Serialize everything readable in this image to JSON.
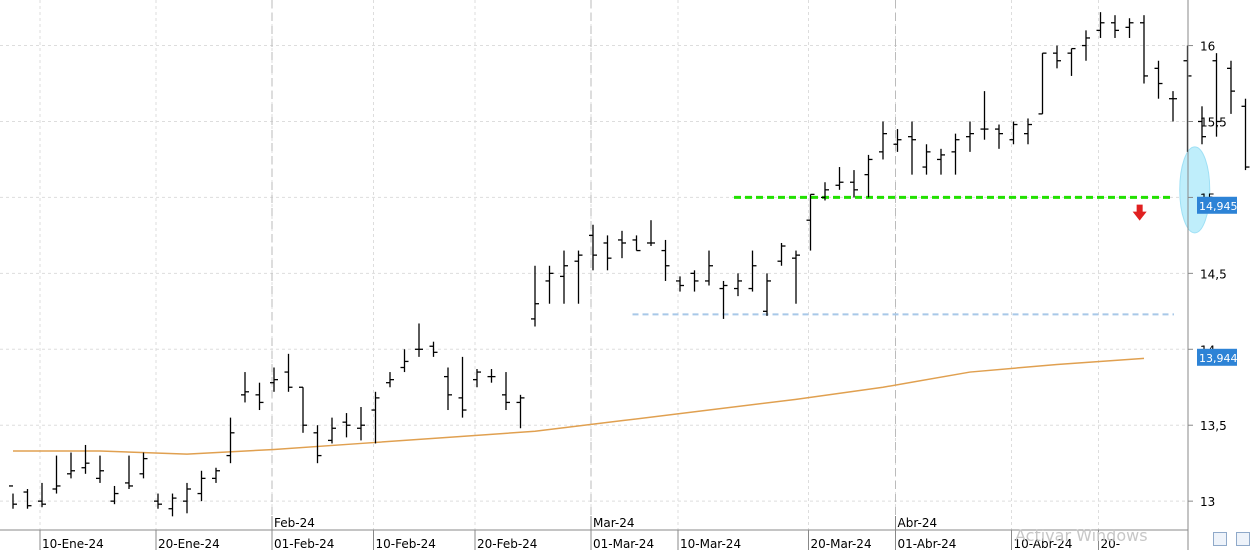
{
  "chart_data": {
    "type": "ohlc",
    "y_ticks": [
      {
        "value": 13,
        "label": "13"
      },
      {
        "value": 13.5,
        "label": "13,5"
      },
      {
        "value": 14,
        "label": "14"
      },
      {
        "value": 14.5,
        "label": "14,5"
      },
      {
        "value": 15,
        "label": "15"
      },
      {
        "value": 15.5,
        "label": "15,5"
      },
      {
        "value": 16,
        "label": "16"
      }
    ],
    "ylim": [
      12.81,
      16.3
    ],
    "x_tick_labels": [
      {
        "bar": 2,
        "label": "10-Ene-24"
      },
      {
        "bar": 10,
        "label": "20-Ene-24"
      },
      {
        "bar": 18,
        "label": "01-Feb-24"
      },
      {
        "bar": 25,
        "label": "10-Feb-24"
      },
      {
        "bar": 32,
        "label": "20-Feb-24"
      },
      {
        "bar": 40,
        "label": "01-Mar-24"
      },
      {
        "bar": 46,
        "label": "10-Mar-24"
      },
      {
        "bar": 55,
        "label": "20-Mar-24"
      },
      {
        "bar": 61,
        "label": "01-Abr-24"
      },
      {
        "bar": 69,
        "label": "10-Abr-24"
      },
      {
        "bar": 75,
        "label": "20-"
      }
    ],
    "month_labels": [
      {
        "bar": 18,
        "label": "Feb-24"
      },
      {
        "bar": 40,
        "label": "Mar-24"
      },
      {
        "bar": 61,
        "label": "Abr-24"
      }
    ],
    "price_labels": [
      {
        "value": 14.945,
        "label": "14,945"
      },
      {
        "value": 13.944,
        "label": "13,944"
      }
    ],
    "bars": [
      [
        13.1,
        13.05,
        12.95,
        12.98
      ],
      [
        13.06,
        13.08,
        12.95,
        12.97
      ],
      [
        13.0,
        13.12,
        12.96,
        12.98
      ],
      [
        13.08,
        13.3,
        13.05,
        13.1
      ],
      [
        13.18,
        13.32,
        13.15,
        13.2
      ],
      [
        13.22,
        13.37,
        13.18,
        13.25
      ],
      [
        13.15,
        13.3,
        13.12,
        13.2
      ],
      [
        13.0,
        13.1,
        12.98,
        13.05
      ],
      [
        13.12,
        13.3,
        13.08,
        13.1
      ],
      [
        13.18,
        13.32,
        13.15,
        13.28
      ],
      [
        13.0,
        13.05,
        12.95,
        12.98
      ],
      [
        12.95,
        13.05,
        12.9,
        13.02
      ],
      [
        13.0,
        13.12,
        12.92,
        13.08
      ],
      [
        13.05,
        13.2,
        13.0,
        13.15
      ],
      [
        13.15,
        13.22,
        13.12,
        13.2
      ],
      [
        13.3,
        13.55,
        13.25,
        13.45
      ],
      [
        13.7,
        13.85,
        13.65,
        13.72
      ],
      [
        13.7,
        13.78,
        13.6,
        13.65
      ],
      [
        13.78,
        13.88,
        13.72,
        13.8
      ],
      [
        13.85,
        13.97,
        13.72,
        13.75
      ],
      [
        13.75,
        13.75,
        13.45,
        13.5
      ],
      [
        13.45,
        13.5,
        13.25,
        13.3
      ],
      [
        13.4,
        13.55,
        13.38,
        13.48
      ],
      [
        13.52,
        13.58,
        13.42,
        13.5
      ],
      [
        13.48,
        13.62,
        13.4,
        13.5
      ],
      [
        13.6,
        13.72,
        13.38,
        13.68
      ],
      [
        13.78,
        13.85,
        13.75,
        13.8
      ],
      [
        13.88,
        14.0,
        13.85,
        13.92
      ],
      [
        14.0,
        14.17,
        13.95,
        14.0
      ],
      [
        14.02,
        14.05,
        13.95,
        13.98
      ],
      [
        13.82,
        13.88,
        13.6,
        13.7
      ],
      [
        13.68,
        13.95,
        13.55,
        13.6
      ],
      [
        13.8,
        13.87,
        13.75,
        13.85
      ],
      [
        13.82,
        13.87,
        13.78,
        13.82
      ],
      [
        13.7,
        13.85,
        13.6,
        13.65
      ],
      [
        13.65,
        13.7,
        13.48,
        13.68
      ],
      [
        14.2,
        14.55,
        14.15,
        14.3
      ],
      [
        14.45,
        14.55,
        14.3,
        14.5
      ],
      [
        14.48,
        14.65,
        14.3,
        14.55
      ],
      [
        14.58,
        14.65,
        14.3,
        14.62
      ],
      [
        14.75,
        14.82,
        14.52,
        14.62
      ],
      [
        14.7,
        14.75,
        14.52,
        14.6
      ],
      [
        14.72,
        14.78,
        14.6,
        14.7
      ],
      [
        14.72,
        14.75,
        14.65,
        14.65
      ],
      [
        14.7,
        14.85,
        14.68,
        14.7
      ],
      [
        14.65,
        14.72,
        14.45,
        14.55
      ],
      [
        14.45,
        14.48,
        14.38,
        14.42
      ],
      [
        14.5,
        14.52,
        14.38,
        14.45
      ],
      [
        14.45,
        14.65,
        14.42,
        14.55
      ],
      [
        14.4,
        14.45,
        14.2,
        14.42
      ],
      [
        14.4,
        14.5,
        14.35,
        14.45
      ],
      [
        14.4,
        14.65,
        14.38,
        14.55
      ],
      [
        14.25,
        14.5,
        14.22,
        14.45
      ],
      [
        14.58,
        14.7,
        14.55,
        14.68
      ],
      [
        14.6,
        14.65,
        14.3,
        14.62
      ],
      [
        14.85,
        15.02,
        14.65,
        15.02
      ],
      [
        15.0,
        15.1,
        14.98,
        15.05
      ],
      [
        15.08,
        15.2,
        15.05,
        15.1
      ],
      [
        15.1,
        15.18,
        15.0,
        15.05
      ],
      [
        15.15,
        15.28,
        15.0,
        15.25
      ],
      [
        15.3,
        15.5,
        15.25,
        15.42
      ],
      [
        15.35,
        15.45,
        15.3,
        15.38
      ],
      [
        15.4,
        15.5,
        15.15,
        15.38
      ],
      [
        15.2,
        15.35,
        15.15,
        15.3
      ],
      [
        15.25,
        15.32,
        15.15,
        15.28
      ],
      [
        15.3,
        15.42,
        15.15,
        15.38
      ],
      [
        15.4,
        15.5,
        15.3,
        15.42
      ],
      [
        15.45,
        15.7,
        15.38,
        15.45
      ],
      [
        15.45,
        15.48,
        15.32,
        15.42
      ],
      [
        15.38,
        15.5,
        15.35,
        15.48
      ],
      [
        15.42,
        15.52,
        15.35,
        15.48
      ],
      [
        15.55,
        15.95,
        15.55,
        15.95
      ],
      [
        15.95,
        16.0,
        15.85,
        15.9
      ],
      [
        15.95,
        15.98,
        15.8,
        15.98
      ],
      [
        16.0,
        16.1,
        15.9,
        16.05
      ],
      [
        16.1,
        16.22,
        16.05,
        16.15
      ],
      [
        16.15,
        16.2,
        16.05,
        16.1
      ],
      [
        16.12,
        16.18,
        16.05,
        16.15
      ],
      [
        16.15,
        16.2,
        15.75,
        15.8
      ],
      [
        15.85,
        15.9,
        15.65,
        15.75
      ],
      [
        15.65,
        15.7,
        15.5,
        15.65
      ],
      [
        15.9,
        16.0,
        15.3,
        15.8
      ],
      [
        15.5,
        15.6,
        15.35,
        15.4
      ],
      [
        15.9,
        15.95,
        15.4,
        15.5
      ],
      [
        15.85,
        15.9,
        15.55,
        15.7
      ],
      [
        15.6,
        15.65,
        15.18,
        15.2
      ],
      [
        15.2,
        15.32,
        15.15,
        15.18
      ],
      [
        15.18,
        15.22,
        15.0,
        15.05
      ],
      [
        14.95,
        15.15,
        14.75,
        15.12
      ]
    ],
    "horizontal_lines": [
      {
        "value": 15.0,
        "color": "#22e000",
        "style": "dashed",
        "from_bar": 50
      },
      {
        "value": 14.23,
        "color": "#a8c8e8",
        "style": "dashed",
        "from_bar": 43
      }
    ],
    "moving_average": {
      "color": "#e0a050",
      "points": [
        [
          0,
          13.33
        ],
        [
          6,
          13.33
        ],
        [
          12,
          13.31
        ],
        [
          18,
          13.34
        ],
        [
          24,
          13.38
        ],
        [
          30,
          13.42
        ],
        [
          36,
          13.46
        ],
        [
          42,
          13.53
        ],
        [
          48,
          13.6
        ],
        [
          54,
          13.67
        ],
        [
          60,
          13.75
        ],
        [
          66,
          13.85
        ],
        [
          72,
          13.9
        ],
        [
          78,
          13.94
        ]
      ]
    },
    "annotations": {
      "down_arrow": {
        "color": "#e02020",
        "bar": 77.7,
        "value": 14.88
      },
      "ellipse": {
        "color": "#bfeefb",
        "bar": 81.5,
        "value": 15.05
      }
    }
  },
  "watermark": "Activar Windows"
}
